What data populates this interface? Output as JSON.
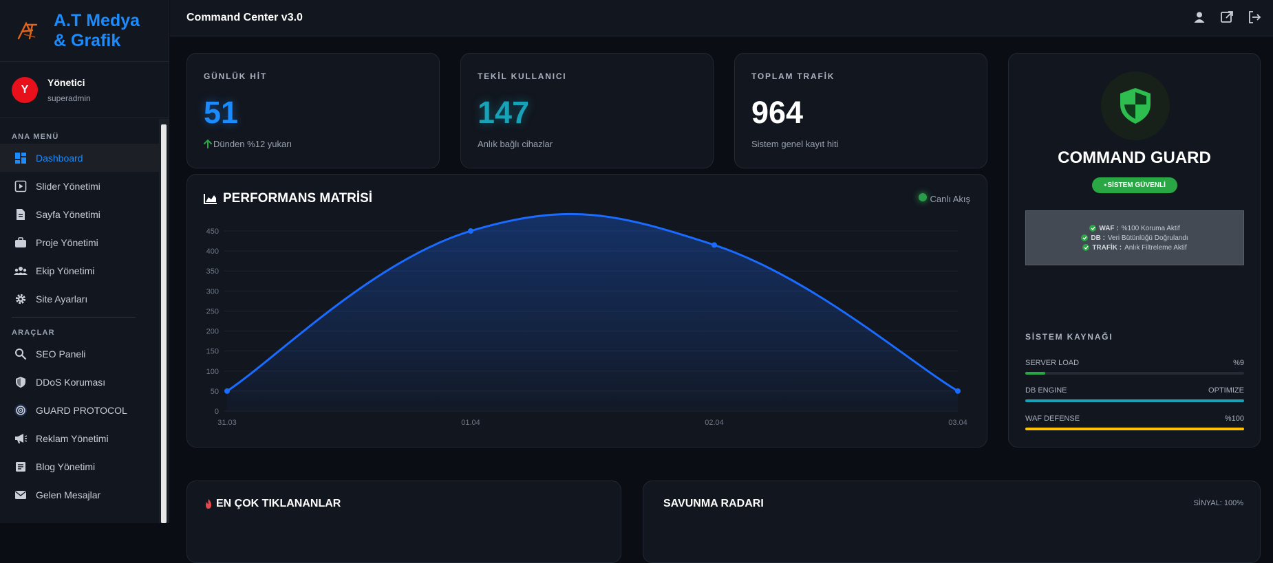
{
  "brand": {
    "line1": "A.T Medya",
    "line2": "& Grafik"
  },
  "user": {
    "initial": "Y",
    "name": "Yönetici",
    "role": "superadmin"
  },
  "menu": {
    "main_label": "ANA MENÜ",
    "main_items": [
      {
        "label": "Dashboard",
        "icon": "dashboard-icon"
      },
      {
        "label": "Slider Yönetimi",
        "icon": "play-square-icon"
      },
      {
        "label": "Sayfa Yönetimi",
        "icon": "file-icon"
      },
      {
        "label": "Proje Yönetimi",
        "icon": "briefcase-icon"
      },
      {
        "label": "Ekip Yönetimi",
        "icon": "team-icon"
      },
      {
        "label": "Site Ayarları",
        "icon": "gear-icon"
      }
    ],
    "tools_label": "ARAÇLAR",
    "tool_items": [
      {
        "label": "SEO Paneli",
        "icon": "search-icon"
      },
      {
        "label": "DDoS Koruması",
        "icon": "shield-icon"
      },
      {
        "label": "GUARD PROTOCOL",
        "icon": "radar-icon"
      },
      {
        "label": "Reklam Yönetimi",
        "icon": "megaphone-icon"
      },
      {
        "label": "Blog Yönetimi",
        "icon": "blog-icon"
      },
      {
        "label": "Gelen Mesajlar",
        "icon": "mail-icon"
      }
    ]
  },
  "topbar": {
    "title": "Command Center v3.0"
  },
  "stats": [
    {
      "label": "GÜNLÜK HİT",
      "value": "51",
      "sub": "Dünden %12 yukarı",
      "color": "#1a8cff"
    },
    {
      "label": "TEKİL KULLANICI",
      "value": "147",
      "sub": "Anlık bağlı cihazlar",
      "color": "#17a2b8"
    },
    {
      "label": "TOPLAM TRAFİK",
      "value": "964",
      "sub": "Sistem genel kayıt hiti",
      "color": "#ffffff"
    }
  ],
  "performance": {
    "title": "PERFORMANS MATRİSİ",
    "live_label": "Canlı Akış"
  },
  "chart_data": {
    "type": "line",
    "title": "PERFORMANS MATRİSİ",
    "categories": [
      "31.03",
      "01.04",
      "02.04",
      "03.04"
    ],
    "values": [
      50,
      450,
      415,
      50
    ],
    "ylim": [
      0,
      450
    ],
    "yticks": [
      0,
      50,
      100,
      150,
      200,
      250,
      300,
      350,
      400,
      450
    ],
    "grid": true,
    "fill": "area",
    "color": "#1a6bff"
  },
  "guard": {
    "title": "COMMAND GUARD",
    "badge": "SİSTEM GÜVENLİ",
    "lines": [
      {
        "key": "WAF :",
        "text": "%100 Koruma Aktif"
      },
      {
        "key": "DB :",
        "text": "Veri Bütünlüğü Doğrulandı"
      },
      {
        "key": "TRAFİK :",
        "text": "Anlık Filtreleme Aktif"
      }
    ],
    "resources_title": "SİSTEM KAYNAĞI",
    "resources": [
      {
        "name": "SERVER LOAD",
        "value": "%9",
        "fraction": 0.09,
        "color": "#29a745"
      },
      {
        "name": "DB ENGINE",
        "value": "OPTIMIZE",
        "fraction": 1.0,
        "color": "#17a2b8"
      },
      {
        "name": "WAF DEFENSE",
        "value": "%100",
        "fraction": 1.0,
        "color": "#ffc107"
      }
    ]
  },
  "bottom": {
    "left_title": "EN ÇOK TIKLANANLAR",
    "right_title": "SAVUNMA RADARI",
    "signal": "SİNYAL: 100%"
  }
}
